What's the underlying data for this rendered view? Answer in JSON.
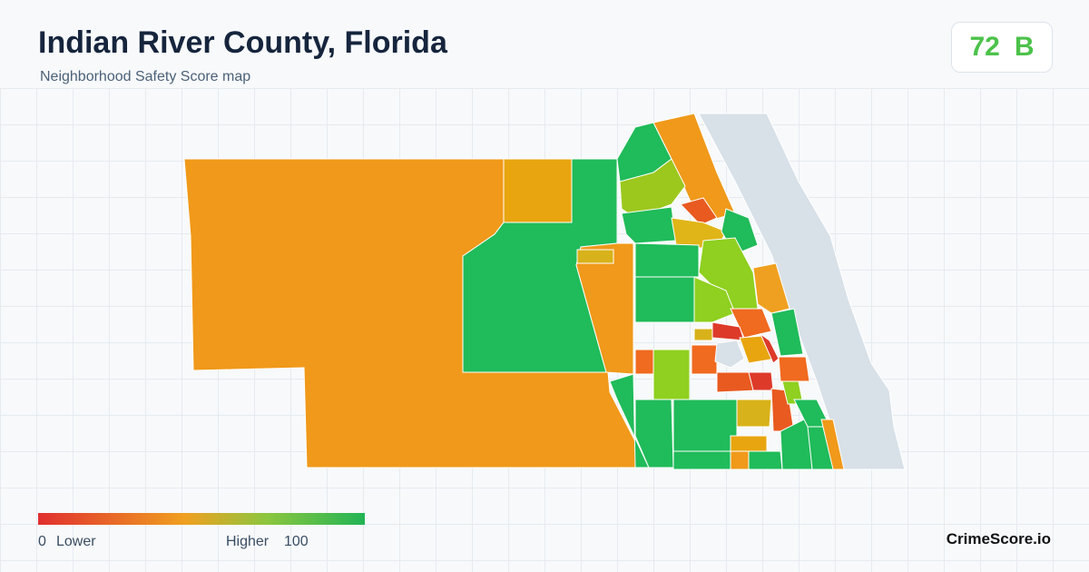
{
  "header": {
    "title": "Indian River County, Florida",
    "subtitle": "Neighborhood Safety Score map"
  },
  "score": {
    "value": 72,
    "grade": "B"
  },
  "legend": {
    "min": 0,
    "min_label": "Lower",
    "max_label": "Higher",
    "max": 100
  },
  "footer": {
    "brand": "CrimeScore.io"
  }
}
